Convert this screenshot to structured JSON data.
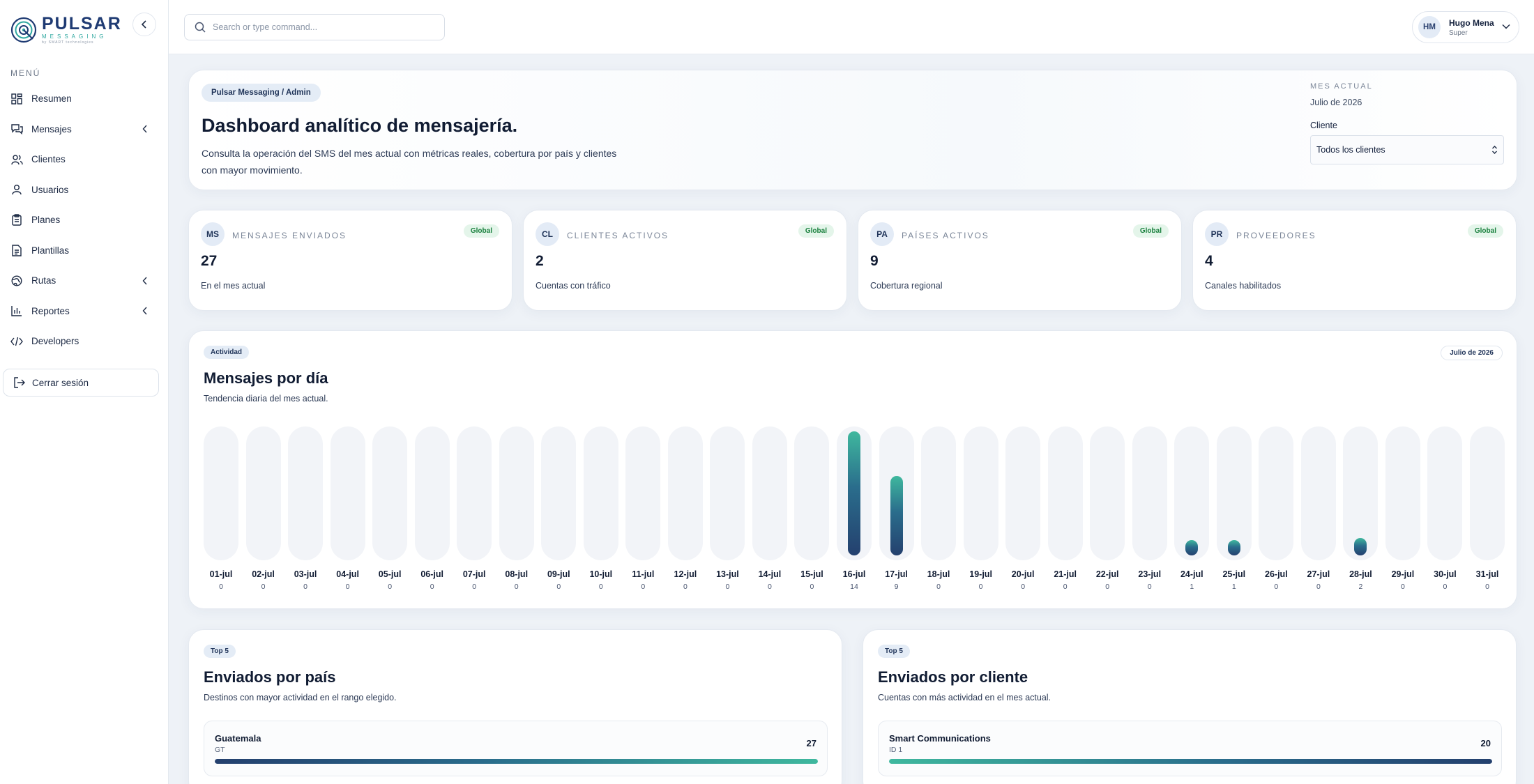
{
  "brand": {
    "name": "PULSAR",
    "sub": "MESSAGING",
    "by": "by SMART technologies"
  },
  "sidebar": {
    "menu_title": "MENÚ",
    "items": [
      {
        "label": "Resumen",
        "icon": "grid-icon",
        "has_submenu": false
      },
      {
        "label": "Mensajes",
        "icon": "chat-icon",
        "has_submenu": true
      },
      {
        "label": "Clientes",
        "icon": "users-icon",
        "has_submenu": false
      },
      {
        "label": "Usuarios",
        "icon": "user-icon",
        "has_submenu": false
      },
      {
        "label": "Planes",
        "icon": "clipboard-icon",
        "has_submenu": false
      },
      {
        "label": "Plantillas",
        "icon": "document-icon",
        "has_submenu": false
      },
      {
        "label": "Rutas",
        "icon": "globe-icon",
        "has_submenu": true
      },
      {
        "label": "Reportes",
        "icon": "bar-chart-icon",
        "has_submenu": true
      },
      {
        "label": "Developers",
        "icon": "code-icon",
        "has_submenu": false
      }
    ],
    "logout_label": "Cerrar sesión"
  },
  "topbar": {
    "search_placeholder": "Search or type command...",
    "user": {
      "initials": "HM",
      "name": "Hugo Mena",
      "role": "Super"
    }
  },
  "hero": {
    "breadcrumb": "Pulsar Messaging / Admin",
    "title": "Dashboard analítico de mensajería.",
    "description": "Consulta la operación del SMS del mes actual con métricas reales, cobertura por país y clientes con mayor movimiento.",
    "month_label": "MES ACTUAL",
    "month_value": "Julio de 2026",
    "client_label": "Cliente",
    "client_selected": "Todos los clientes"
  },
  "kpis": [
    {
      "abbr": "MS",
      "title": "MENSAJES ENVIADOS",
      "badge": "Global",
      "value": "27",
      "desc": "En el mes actual"
    },
    {
      "abbr": "CL",
      "title": "CLIENTES ACTIVOS",
      "badge": "Global",
      "value": "2",
      "desc": "Cuentas con tráfico"
    },
    {
      "abbr": "PA",
      "title": "PAÍSES ACTIVOS",
      "badge": "Global",
      "value": "9",
      "desc": "Cobertura regional"
    },
    {
      "abbr": "PR",
      "title": "PROVEEDORES",
      "badge": "Global",
      "value": "4",
      "desc": "Canales habilitados"
    }
  ],
  "activity": {
    "tag": "Actividad",
    "title": "Mensajes por día",
    "subtitle": "Tendencia diaria del mes actual.",
    "month_badge": "Julio de 2026"
  },
  "chart_data": {
    "type": "bar",
    "categories": [
      "01-jul",
      "02-jul",
      "03-jul",
      "04-jul",
      "05-jul",
      "06-jul",
      "07-jul",
      "08-jul",
      "09-jul",
      "10-jul",
      "11-jul",
      "12-jul",
      "13-jul",
      "14-jul",
      "15-jul",
      "16-jul",
      "17-jul",
      "18-jul",
      "19-jul",
      "20-jul",
      "21-jul",
      "22-jul",
      "23-jul",
      "24-jul",
      "25-jul",
      "26-jul",
      "27-jul",
      "28-jul",
      "29-jul",
      "30-jul",
      "31-jul"
    ],
    "values": [
      0,
      0,
      0,
      0,
      0,
      0,
      0,
      0,
      0,
      0,
      0,
      0,
      0,
      0,
      0,
      14,
      9,
      0,
      0,
      0,
      0,
      0,
      0,
      1,
      1,
      0,
      0,
      2,
      0,
      0,
      0
    ],
    "title": "Mensajes por día",
    "ylim": [
      0,
      14
    ]
  },
  "by_country": {
    "tag": "Top 5",
    "title": "Enviados por país",
    "subtitle": "Destinos con mayor actividad en el rango elegido.",
    "rows": [
      {
        "name": "Guatemala",
        "code": "GT",
        "value": "27",
        "share": 1.0
      }
    ]
  },
  "by_client": {
    "tag": "Top 5",
    "title": "Enviados por cliente",
    "subtitle": "Cuentas con más actividad en el mes actual.",
    "rows": [
      {
        "name": "Smart Communications",
        "code": "ID 1",
        "value": "20",
        "share": 1.0
      }
    ]
  },
  "colors": {
    "brand": "#1f3b73",
    "accent": "#3fb89e",
    "badge_green": "#19803d"
  }
}
